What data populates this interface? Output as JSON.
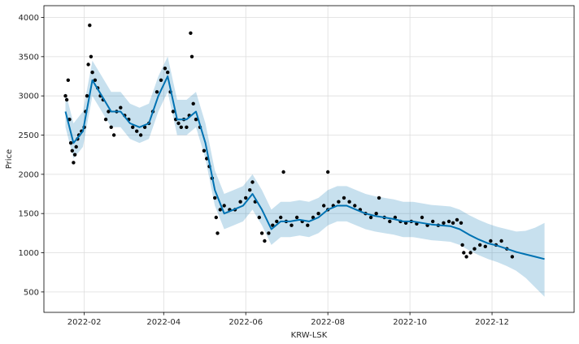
{
  "chart_data": {
    "type": "line",
    "title": "",
    "xlabel": "KRW-LSK",
    "ylabel": "Price",
    "x_type": "date",
    "xlim": [
      "2022-01-02",
      "2023-01-31"
    ],
    "ylim": [
      240,
      4150
    ],
    "grid": true,
    "legend": "none",
    "x_ticks": [
      {
        "value": "2022-02-01",
        "label": "2022-02"
      },
      {
        "value": "2022-04-01",
        "label": "2022-04"
      },
      {
        "value": "2022-06-01",
        "label": "2022-06"
      },
      {
        "value": "2022-08-01",
        "label": "2022-08"
      },
      {
        "value": "2022-10-01",
        "label": "2022-10"
      },
      {
        "value": "2022-12-01",
        "label": "2022-12"
      }
    ],
    "y_ticks": [
      500,
      1000,
      1500,
      2000,
      2500,
      3000,
      3500,
      4000
    ],
    "colors": {
      "observed": "#000000",
      "forecast": "#0072B2",
      "uncertainty": "#0072B2",
      "grid": "#dddddd",
      "axes": "#000000"
    },
    "series": [
      {
        "role": "observed",
        "style": "points",
        "points": [
          [
            "2022-01-18",
            3000
          ],
          [
            "2022-01-19",
            2950
          ],
          [
            "2022-01-20",
            3200
          ],
          [
            "2022-01-21",
            2700
          ],
          [
            "2022-01-22",
            2400
          ],
          [
            "2022-01-23",
            2300
          ],
          [
            "2022-01-24",
            2150
          ],
          [
            "2022-01-25",
            2250
          ],
          [
            "2022-01-26",
            2350
          ],
          [
            "2022-01-27",
            2450
          ],
          [
            "2022-01-28",
            2500
          ],
          [
            "2022-01-30",
            2550
          ],
          [
            "2022-02-01",
            2600
          ],
          [
            "2022-02-02",
            2800
          ],
          [
            "2022-02-03",
            3000
          ],
          [
            "2022-02-04",
            3400
          ],
          [
            "2022-02-05",
            3900
          ],
          [
            "2022-02-06",
            3500
          ],
          [
            "2022-02-07",
            3300
          ],
          [
            "2022-02-09",
            3200
          ],
          [
            "2022-02-11",
            3100
          ],
          [
            "2022-02-13",
            3000
          ],
          [
            "2022-02-15",
            2950
          ],
          [
            "2022-02-17",
            2700
          ],
          [
            "2022-02-19",
            2800
          ],
          [
            "2022-02-21",
            2600
          ],
          [
            "2022-02-23",
            2500
          ],
          [
            "2022-02-25",
            2800
          ],
          [
            "2022-02-28",
            2850
          ],
          [
            "2022-03-03",
            2750
          ],
          [
            "2022-03-06",
            2700
          ],
          [
            "2022-03-09",
            2600
          ],
          [
            "2022-03-12",
            2550
          ],
          [
            "2022-03-15",
            2500
          ],
          [
            "2022-03-18",
            2600
          ],
          [
            "2022-03-21",
            2650
          ],
          [
            "2022-03-24",
            2800
          ],
          [
            "2022-03-27",
            3050
          ],
          [
            "2022-03-30",
            3200
          ],
          [
            "2022-04-02",
            3350
          ],
          [
            "2022-04-04",
            3300
          ],
          [
            "2022-04-06",
            3050
          ],
          [
            "2022-04-08",
            2800
          ],
          [
            "2022-04-10",
            2700
          ],
          [
            "2022-04-12",
            2650
          ],
          [
            "2022-04-14",
            2600
          ],
          [
            "2022-04-16",
            2700
          ],
          [
            "2022-04-18",
            2600
          ],
          [
            "2022-04-20",
            2750
          ],
          [
            "2022-04-21",
            3800
          ],
          [
            "2022-04-22",
            3500
          ],
          [
            "2022-04-23",
            2900
          ],
          [
            "2022-04-25",
            2700
          ],
          [
            "2022-04-28",
            2600
          ],
          [
            "2022-05-01",
            2300
          ],
          [
            "2022-05-03",
            2200
          ],
          [
            "2022-05-05",
            2100
          ],
          [
            "2022-05-07",
            1950
          ],
          [
            "2022-05-09",
            1700
          ],
          [
            "2022-05-10",
            1450
          ],
          [
            "2022-05-11",
            1250
          ],
          [
            "2022-05-13",
            1550
          ],
          [
            "2022-05-16",
            1600
          ],
          [
            "2022-05-20",
            1550
          ],
          [
            "2022-05-24",
            1550
          ],
          [
            "2022-05-28",
            1650
          ],
          [
            "2022-06-01",
            1700
          ],
          [
            "2022-06-04",
            1800
          ],
          [
            "2022-06-06",
            1900
          ],
          [
            "2022-06-08",
            1650
          ],
          [
            "2022-06-11",
            1450
          ],
          [
            "2022-06-13",
            1250
          ],
          [
            "2022-06-15",
            1150
          ],
          [
            "2022-06-18",
            1250
          ],
          [
            "2022-06-21",
            1350
          ],
          [
            "2022-06-24",
            1400
          ],
          [
            "2022-06-27",
            1450
          ],
          [
            "2022-06-29",
            2030
          ],
          [
            "2022-07-01",
            1400
          ],
          [
            "2022-07-05",
            1350
          ],
          [
            "2022-07-09",
            1450
          ],
          [
            "2022-07-13",
            1400
          ],
          [
            "2022-07-17",
            1350
          ],
          [
            "2022-07-21",
            1450
          ],
          [
            "2022-07-25",
            1500
          ],
          [
            "2022-07-29",
            1600
          ],
          [
            "2022-08-01",
            1550
          ],
          [
            "2022-08-01",
            2030
          ],
          [
            "2022-08-05",
            1600
          ],
          [
            "2022-08-09",
            1650
          ],
          [
            "2022-08-13",
            1700
          ],
          [
            "2022-08-17",
            1650
          ],
          [
            "2022-08-21",
            1600
          ],
          [
            "2022-08-25",
            1550
          ],
          [
            "2022-08-29",
            1500
          ],
          [
            "2022-09-02",
            1450
          ],
          [
            "2022-09-06",
            1500
          ],
          [
            "2022-09-08",
            1700
          ],
          [
            "2022-09-12",
            1450
          ],
          [
            "2022-09-16",
            1400
          ],
          [
            "2022-09-20",
            1450
          ],
          [
            "2022-09-24",
            1400
          ],
          [
            "2022-09-28",
            1380
          ],
          [
            "2022-10-02",
            1400
          ],
          [
            "2022-10-06",
            1370
          ],
          [
            "2022-10-10",
            1450
          ],
          [
            "2022-10-14",
            1350
          ],
          [
            "2022-10-18",
            1400
          ],
          [
            "2022-10-22",
            1350
          ],
          [
            "2022-10-26",
            1380
          ],
          [
            "2022-10-30",
            1400
          ],
          [
            "2022-11-02",
            1380
          ],
          [
            "2022-11-05",
            1420
          ],
          [
            "2022-11-08",
            1380
          ],
          [
            "2022-11-09",
            1100
          ],
          [
            "2022-11-10",
            1000
          ],
          [
            "2022-11-12",
            950
          ],
          [
            "2022-11-15",
            1000
          ],
          [
            "2022-11-18",
            1050
          ],
          [
            "2022-11-22",
            1100
          ],
          [
            "2022-11-26",
            1080
          ],
          [
            "2022-11-30",
            1150
          ],
          [
            "2022-12-04",
            1100
          ],
          [
            "2022-12-08",
            1150
          ],
          [
            "2022-12-12",
            1050
          ],
          [
            "2022-12-16",
            950
          ]
        ]
      },
      {
        "role": "forecast",
        "style": "line",
        "points": [
          [
            "2022-01-18",
            2800
          ],
          [
            "2022-01-24",
            2400
          ],
          [
            "2022-01-31",
            2550
          ],
          [
            "2022-02-07",
            3200
          ],
          [
            "2022-02-14",
            3000
          ],
          [
            "2022-02-21",
            2800
          ],
          [
            "2022-02-28",
            2800
          ],
          [
            "2022-03-07",
            2650
          ],
          [
            "2022-03-14",
            2600
          ],
          [
            "2022-03-21",
            2650
          ],
          [
            "2022-03-28",
            3000
          ],
          [
            "2022-04-04",
            3250
          ],
          [
            "2022-04-11",
            2700
          ],
          [
            "2022-04-18",
            2700
          ],
          [
            "2022-04-25",
            2800
          ],
          [
            "2022-05-02",
            2400
          ],
          [
            "2022-05-09",
            1800
          ],
          [
            "2022-05-16",
            1500
          ],
          [
            "2022-05-23",
            1550
          ],
          [
            "2022-05-30",
            1600
          ],
          [
            "2022-06-06",
            1750
          ],
          [
            "2022-06-13",
            1550
          ],
          [
            "2022-06-20",
            1300
          ],
          [
            "2022-06-27",
            1400
          ],
          [
            "2022-07-04",
            1400
          ],
          [
            "2022-07-11",
            1420
          ],
          [
            "2022-07-18",
            1400
          ],
          [
            "2022-07-25",
            1450
          ],
          [
            "2022-08-01",
            1550
          ],
          [
            "2022-08-08",
            1600
          ],
          [
            "2022-08-15",
            1600
          ],
          [
            "2022-08-22",
            1550
          ],
          [
            "2022-08-29",
            1500
          ],
          [
            "2022-09-05",
            1470
          ],
          [
            "2022-09-12",
            1450
          ],
          [
            "2022-09-19",
            1430
          ],
          [
            "2022-09-26",
            1400
          ],
          [
            "2022-10-03",
            1400
          ],
          [
            "2022-10-10",
            1380
          ],
          [
            "2022-10-17",
            1360
          ],
          [
            "2022-10-24",
            1350
          ],
          [
            "2022-10-31",
            1340
          ],
          [
            "2022-11-07",
            1300
          ],
          [
            "2022-11-14",
            1230
          ],
          [
            "2022-11-21",
            1170
          ],
          [
            "2022-11-28",
            1120
          ],
          [
            "2022-12-05",
            1090
          ],
          [
            "2022-12-12",
            1050
          ],
          [
            "2022-12-19",
            1010
          ],
          [
            "2022-12-26",
            980
          ],
          [
            "2023-01-02",
            950
          ],
          [
            "2023-01-09",
            920
          ]
        ]
      },
      {
        "role": "uncertainty",
        "style": "band",
        "points": [
          [
            "2022-01-18",
            2600,
            3050
          ],
          [
            "2022-01-24",
            2200,
            2650
          ],
          [
            "2022-01-31",
            2350,
            2800
          ],
          [
            "2022-02-07",
            3000,
            3450
          ],
          [
            "2022-02-14",
            2800,
            3250
          ],
          [
            "2022-02-21",
            2600,
            3050
          ],
          [
            "2022-02-28",
            2600,
            3050
          ],
          [
            "2022-03-07",
            2450,
            2900
          ],
          [
            "2022-03-14",
            2400,
            2850
          ],
          [
            "2022-03-21",
            2450,
            2900
          ],
          [
            "2022-03-28",
            2800,
            3250
          ],
          [
            "2022-04-04",
            3050,
            3500
          ],
          [
            "2022-04-11",
            2500,
            2950
          ],
          [
            "2022-04-18",
            2500,
            2950
          ],
          [
            "2022-04-25",
            2600,
            3050
          ],
          [
            "2022-05-02",
            2200,
            2650
          ],
          [
            "2022-05-09",
            1600,
            2050
          ],
          [
            "2022-05-16",
            1300,
            1750
          ],
          [
            "2022-05-23",
            1350,
            1800
          ],
          [
            "2022-05-30",
            1400,
            1850
          ],
          [
            "2022-06-06",
            1550,
            2000
          ],
          [
            "2022-06-13",
            1350,
            1800
          ],
          [
            "2022-06-20",
            1100,
            1550
          ],
          [
            "2022-06-27",
            1200,
            1650
          ],
          [
            "2022-07-04",
            1200,
            1650
          ],
          [
            "2022-07-11",
            1220,
            1670
          ],
          [
            "2022-07-18",
            1200,
            1650
          ],
          [
            "2022-07-25",
            1250,
            1700
          ],
          [
            "2022-08-01",
            1350,
            1800
          ],
          [
            "2022-08-08",
            1400,
            1850
          ],
          [
            "2022-08-15",
            1400,
            1850
          ],
          [
            "2022-08-22",
            1350,
            1800
          ],
          [
            "2022-08-29",
            1300,
            1750
          ],
          [
            "2022-09-05",
            1270,
            1720
          ],
          [
            "2022-09-12",
            1250,
            1700
          ],
          [
            "2022-09-19",
            1230,
            1680
          ],
          [
            "2022-09-26",
            1200,
            1650
          ],
          [
            "2022-10-03",
            1200,
            1650
          ],
          [
            "2022-10-10",
            1180,
            1630
          ],
          [
            "2022-10-17",
            1160,
            1610
          ],
          [
            "2022-10-24",
            1150,
            1600
          ],
          [
            "2022-10-31",
            1140,
            1590
          ],
          [
            "2022-11-07",
            1100,
            1550
          ],
          [
            "2022-11-14",
            1030,
            1480
          ],
          [
            "2022-11-21",
            970,
            1420
          ],
          [
            "2022-11-28",
            920,
            1370
          ],
          [
            "2022-12-05",
            880,
            1330
          ],
          [
            "2022-12-12",
            830,
            1300
          ],
          [
            "2022-12-19",
            770,
            1270
          ],
          [
            "2022-12-26",
            680,
            1280
          ],
          [
            "2023-01-02",
            560,
            1320
          ],
          [
            "2023-01-09",
            440,
            1380
          ]
        ]
      }
    ]
  }
}
